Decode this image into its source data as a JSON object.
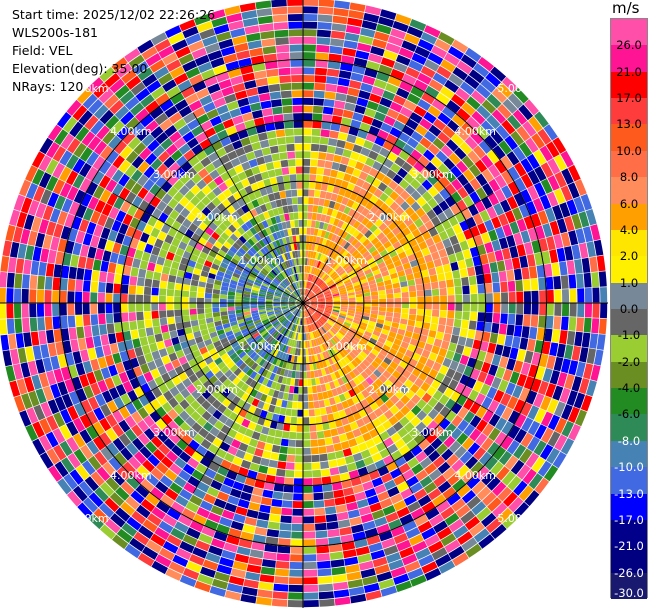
{
  "header": {
    "start_time": "Start time: 2025/12/02 22:26:26",
    "instrument": "WLS200s-181",
    "field": "Field: VEL",
    "elevation": "Elevation(deg): 35.00",
    "nrays": "NRays: 120"
  },
  "colorbar": {
    "unit": "m/s",
    "levels": [
      "26.0",
      "21.0",
      "17.0",
      "13.0",
      "10.0",
      "8.0",
      "6.0",
      "4.0",
      "2.0",
      "1.0",
      "0.0",
      "-1.0",
      "-2.0",
      "-4.0",
      "-6.0",
      "-8.0",
      "-10.0",
      "-13.0",
      "-17.0",
      "-21.0",
      "-26.0",
      "-30.0"
    ],
    "colors": [
      "#ff4fa8",
      "#ff1493",
      "#ff0000",
      "#ff3c3c",
      "#ff5a1e",
      "#ff6e46",
      "#ff8c5a",
      "#ffa000",
      "#ffe600",
      "#fff000",
      "#778899",
      "#666666",
      "#9acd32",
      "#6b8e23",
      "#228b22",
      "#2e8b57",
      "#4682b4",
      "#4169e1",
      "#0000ff",
      "#00008b",
      "#000080",
      "#191970"
    ]
  },
  "chart_data": {
    "type": "polar-ppi",
    "field": "VEL",
    "units": "m/s",
    "nrays": 120,
    "elevation_deg": 35.0,
    "range_rings_km": [
      1.0,
      2.0,
      3.0,
      4.0,
      5.0
    ],
    "range_labels": [
      "1.00km",
      "2.00km",
      "3.00km",
      "4.00km",
      "5.00km"
    ],
    "max_range_km": 5.0,
    "near_field_pattern": {
      "east_positive_m_s": [
        1.0,
        6.0
      ],
      "west_negative_m_s": [
        -17.0,
        -1.0
      ],
      "near_origin_positive_m_s": [
        6.0,
        13.0
      ]
    },
    "far_field": "noise (all colorscale values)"
  }
}
